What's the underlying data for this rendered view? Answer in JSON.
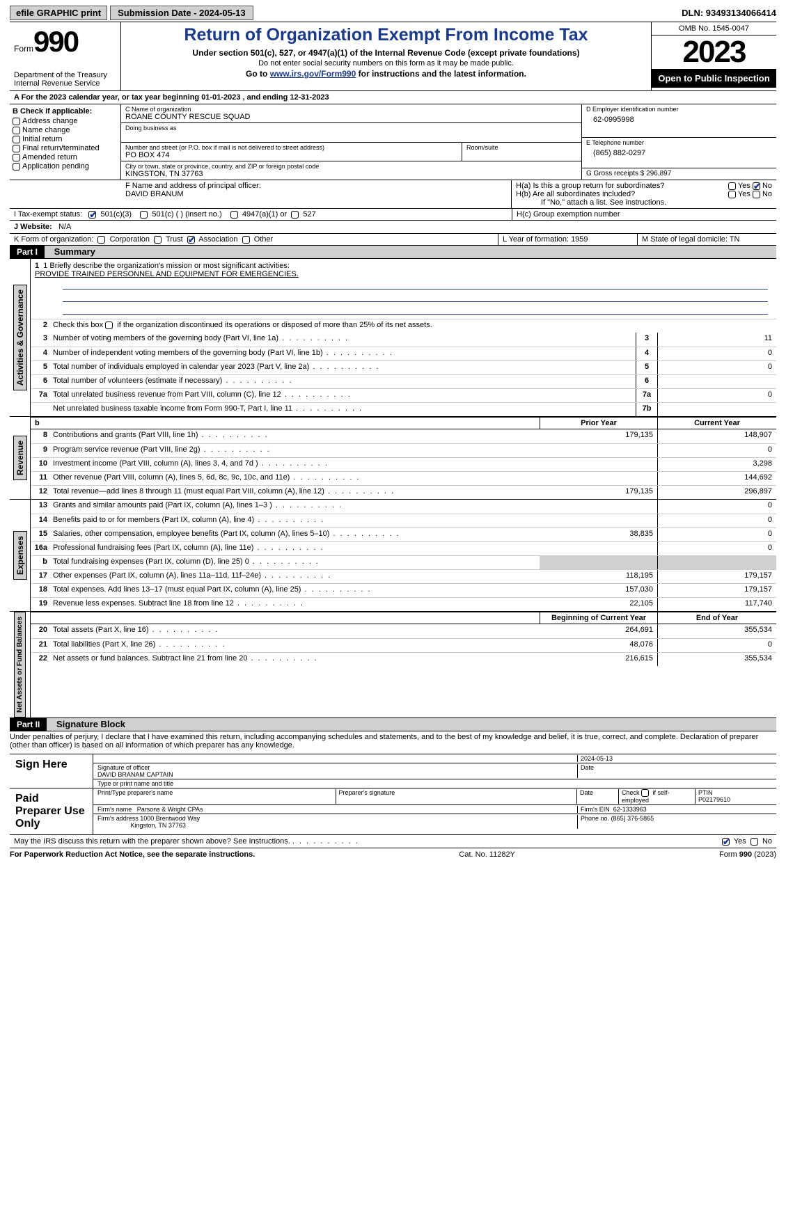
{
  "topbar": {
    "efile": "efile GRAPHIC print",
    "submission": "Submission Date - 2024-05-13",
    "dln": "DLN: 93493134066414"
  },
  "header": {
    "form_word": "Form",
    "form_no": "990",
    "dept": "Department of the Treasury\nInternal Revenue Service",
    "title": "Return of Organization Exempt From Income Tax",
    "sub1": "Under section 501(c), 527, or 4947(a)(1) of the Internal Revenue Code (except private foundations)",
    "sub2": "Do not enter social security numbers on this form as it may be made public.",
    "sub3_pre": "Go to ",
    "sub3_link": "www.irs.gov/Form990",
    "sub3_post": " for instructions and the latest information.",
    "omb": "OMB No. 1545-0047",
    "year": "2023",
    "open": "Open to Public Inspection"
  },
  "row_a": "A  For the 2023 calendar year, or tax year beginning 01-01-2023   , and ending 12-31-2023",
  "box_b": {
    "label": "B Check if applicable:",
    "items": [
      "Address change",
      "Name change",
      "Initial return",
      "Final return/terminated",
      "Amended return",
      "Application pending"
    ]
  },
  "box_c": {
    "name_lbl": "C Name of organization",
    "name": "ROANE COUNTY RESCUE SQUAD",
    "dba_lbl": "Doing business as",
    "addr_lbl": "Number and street (or P.O. box if mail is not delivered to street address)",
    "room_lbl": "Room/suite",
    "addr": "PO BOX 474",
    "city_lbl": "City or town, state or province, country, and ZIP or foreign postal code",
    "city": "KINGSTON, TN  37763"
  },
  "box_d": {
    "lbl": "D Employer identification number",
    "val": "62-0995998"
  },
  "box_e": {
    "lbl": "E Telephone number",
    "val": "(865) 882-0297"
  },
  "box_g": {
    "lbl": "G Gross receipts $",
    "val": "296,897"
  },
  "box_f": {
    "lbl": "F  Name and address of principal officer:",
    "val": "DAVID BRANUM"
  },
  "box_h": {
    "ha": "H(a)  Is this a group return for subordinates?",
    "hb": "H(b)  Are all subordinates included?",
    "hb_note": "If \"No,\" attach a list. See instructions.",
    "hc": "H(c)  Group exemption number",
    "yes": "Yes",
    "no": "No"
  },
  "box_i": {
    "lbl": "I   Tax-exempt status:",
    "o1": "501(c)(3)",
    "o2": "501(c) (  ) (insert no.)",
    "o3": "4947(a)(1) or",
    "o4": "527"
  },
  "box_j": {
    "lbl": "J   Website:",
    "val": "N/A"
  },
  "box_k": {
    "lbl": "K Form of organization:",
    "o1": "Corporation",
    "o2": "Trust",
    "o3": "Association",
    "o4": "Other"
  },
  "box_l": {
    "lbl": "L Year of formation:",
    "val": "1959"
  },
  "box_m": {
    "lbl": "M State of legal domicile:",
    "val": "TN"
  },
  "part1": {
    "num": "Part I",
    "title": "Summary"
  },
  "mission": {
    "lbl": "1   Briefly describe the organization's mission or most significant activities:",
    "txt": "PROVIDE TRAINED PERSONNEL AND EQUIPMENT FOR EMERGENCIES."
  },
  "line2": "Check this box       if the organization discontinued its operations or disposed of more than 25% of its net assets.",
  "lines_gov": [
    {
      "n": "3",
      "d": "Number of voting members of the governing body (Part VI, line 1a)",
      "nb": "3",
      "v": "11"
    },
    {
      "n": "4",
      "d": "Number of independent voting members of the governing body (Part VI, line 1b)",
      "nb": "4",
      "v": "0"
    },
    {
      "n": "5",
      "d": "Total number of individuals employed in calendar year 2023 (Part V, line 2a)",
      "nb": "5",
      "v": "0"
    },
    {
      "n": "6",
      "d": "Total number of volunteers (estimate if necessary)",
      "nb": "6",
      "v": ""
    },
    {
      "n": "7a",
      "d": "Total unrelated business revenue from Part VIII, column (C), line 12",
      "nb": "7a",
      "v": "0"
    },
    {
      "n": "",
      "d": "Net unrelated business taxable income from Form 990-T, Part I, line 11",
      "nb": "7b",
      "v": ""
    }
  ],
  "colhdr_rev": {
    "c1": "Prior Year",
    "c2": "Current Year"
  },
  "lines_rev": [
    {
      "n": "8",
      "d": "Contributions and grants (Part VIII, line 1h)",
      "v1": "179,135",
      "v2": "148,907"
    },
    {
      "n": "9",
      "d": "Program service revenue (Part VIII, line 2g)",
      "v1": "",
      "v2": "0"
    },
    {
      "n": "10",
      "d": "Investment income (Part VIII, column (A), lines 3, 4, and 7d )",
      "v1": "",
      "v2": "3,298"
    },
    {
      "n": "11",
      "d": "Other revenue (Part VIII, column (A), lines 5, 6d, 8c, 9c, 10c, and 11e)",
      "v1": "",
      "v2": "144,692"
    },
    {
      "n": "12",
      "d": "Total revenue—add lines 8 through 11 (must equal Part VIII, column (A), line 12)",
      "v1": "179,135",
      "v2": "296,897"
    }
  ],
  "lines_exp": [
    {
      "n": "13",
      "d": "Grants and similar amounts paid (Part IX, column (A), lines 1–3 )",
      "v1": "",
      "v2": "0"
    },
    {
      "n": "14",
      "d": "Benefits paid to or for members (Part IX, column (A), line 4)",
      "v1": "",
      "v2": "0"
    },
    {
      "n": "15",
      "d": "Salaries, other compensation, employee benefits (Part IX, column (A), lines 5–10)",
      "v1": "38,835",
      "v2": "0"
    },
    {
      "n": "16a",
      "d": "Professional fundraising fees (Part IX, column (A), line 11e)",
      "v1": "",
      "v2": "0"
    },
    {
      "n": "b",
      "d": "Total fundraising expenses (Part IX, column (D), line 25) 0",
      "v1": "sh",
      "v2": "sh"
    },
    {
      "n": "17",
      "d": "Other expenses (Part IX, column (A), lines 11a–11d, 11f–24e)",
      "v1": "118,195",
      "v2": "179,157"
    },
    {
      "n": "18",
      "d": "Total expenses. Add lines 13–17 (must equal Part IX, column (A), line 25)",
      "v1": "157,030",
      "v2": "179,157"
    },
    {
      "n": "19",
      "d": "Revenue less expenses. Subtract line 18 from line 12",
      "v1": "22,105",
      "v2": "117,740"
    }
  ],
  "colhdr_na": {
    "c1": "Beginning of Current Year",
    "c2": "End of Year"
  },
  "lines_na": [
    {
      "n": "20",
      "d": "Total assets (Part X, line 16)",
      "v1": "264,691",
      "v2": "355,534"
    },
    {
      "n": "21",
      "d": "Total liabilities (Part X, line 26)",
      "v1": "48,076",
      "v2": "0"
    },
    {
      "n": "22",
      "d": "Net assets or fund balances. Subtract line 21 from line 20",
      "v1": "216,615",
      "v2": "355,534"
    }
  ],
  "sidetabs": {
    "gov": "Activities & Governance",
    "rev": "Revenue",
    "exp": "Expenses",
    "na": "Net Assets or Fund Balances"
  },
  "part2": {
    "num": "Part II",
    "title": "Signature Block"
  },
  "perjury": "Under penalties of perjury, I declare that I have examined this return, including accompanying schedules and statements, and to the best of my knowledge and belief, it is true, correct, and complete. Declaration of preparer (other than officer) is based on all information of which preparer has any knowledge.",
  "sign": {
    "here": "Sign Here",
    "date": "2024-05-13",
    "sig_lbl": "Signature of officer",
    "officer": "DAVID BRANAM  CAPTAIN",
    "type_lbl": "Type or print name and title",
    "date_lbl": "Date"
  },
  "prep": {
    "here": "Paid Preparer Use Only",
    "name_lbl": "Print/Type preparer's name",
    "sig_lbl": "Preparer's signature",
    "date_lbl": "Date",
    "check_lbl": "Check        if self-employed",
    "ptin_lbl": "PTIN",
    "ptin": "P02179610",
    "firm_lbl": "Firm's name",
    "firm": "Parsons & Wright CPAs",
    "ein_lbl": "Firm's EIN",
    "ein": "62-1333963",
    "addr_lbl": "Firm's address",
    "addr1": "1000 Brentwood Way",
    "addr2": "Kingston, TN  37763",
    "phone_lbl": "Phone no.",
    "phone": "(865) 376-5865"
  },
  "discuss": "May the IRS discuss this return with the preparer shown above? See Instructions.",
  "foot": {
    "l": "For Paperwork Reduction Act Notice, see the separate instructions.",
    "c": "Cat. No. 11282Y",
    "r": "Form 990 (2023)"
  }
}
